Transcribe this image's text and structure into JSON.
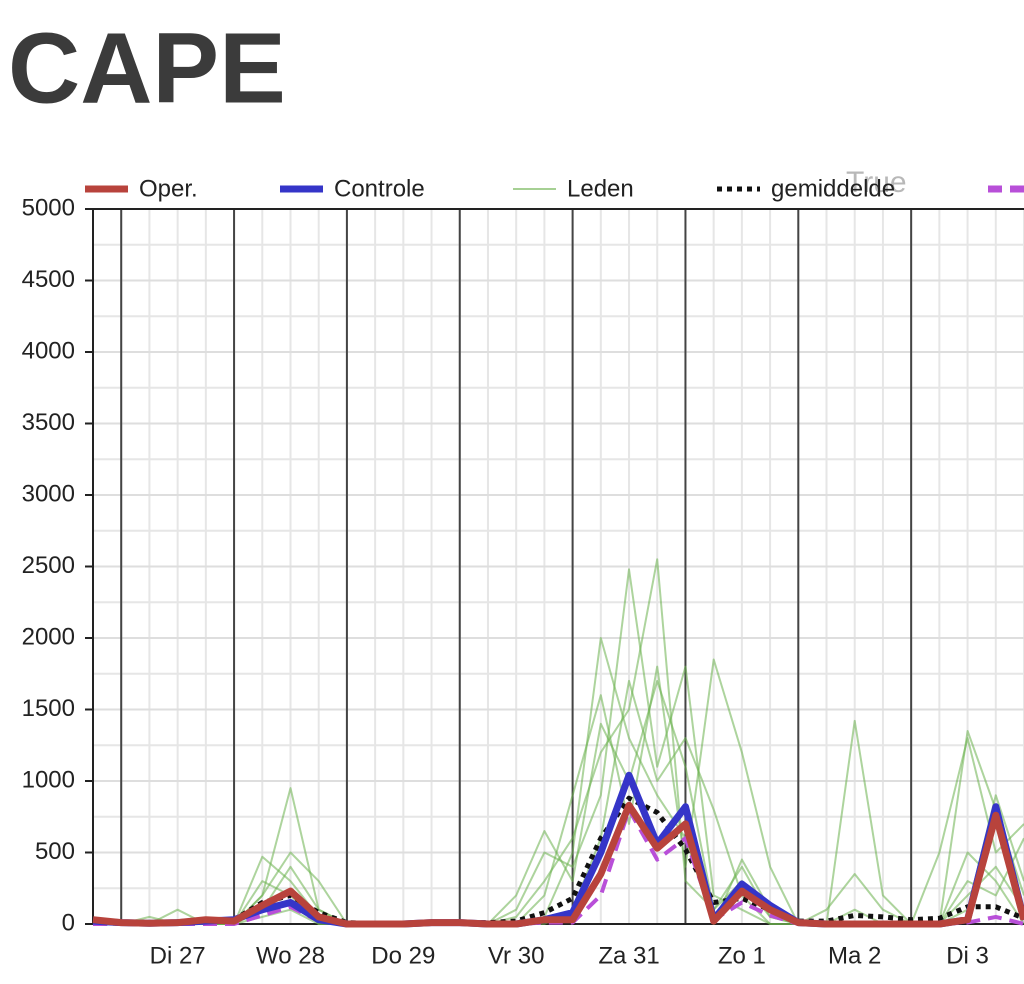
{
  "chart_data": {
    "type": "line",
    "title": "CAPE",
    "annotation": "True",
    "x": [
      -0.25,
      0,
      0.25,
      0.5,
      0.75,
      1,
      1.25,
      1.5,
      1.75,
      2,
      2.25,
      2.5,
      2.75,
      3,
      3.25,
      3.5,
      3.75,
      4,
      4.25,
      4.5,
      4.75,
      5,
      5.25,
      5.5,
      5.75,
      6,
      6.25,
      6.5,
      6.75,
      7,
      7.25,
      7.5,
      7.75,
      8
    ],
    "xlim": [
      -0.25,
      8
    ],
    "xticks": [
      {
        "value": 0.5,
        "label": "Di 27"
      },
      {
        "value": 1.5,
        "label": "Wo 28"
      },
      {
        "value": 2.5,
        "label": "Do 29"
      },
      {
        "value": 3.5,
        "label": "Vr 30"
      },
      {
        "value": 4.5,
        "label": "Za 31"
      },
      {
        "value": 5.5,
        "label": "Zo 1"
      },
      {
        "value": 6.5,
        "label": "Ma 2"
      },
      {
        "value": 7.5,
        "label": "Di 3"
      }
    ],
    "ylim": [
      0,
      5000
    ],
    "yticks": [
      0,
      500,
      1000,
      1500,
      2000,
      2500,
      3000,
      3500,
      4000,
      4500,
      5000
    ],
    "grid": true,
    "members": {
      "name": "Leden",
      "color": "#6ab04c",
      "values": [
        [
          0,
          0,
          0,
          100,
          0,
          0,
          200,
          950,
          100,
          0,
          0,
          0,
          0,
          0,
          0,
          50,
          300,
          600,
          1200,
          1500,
          2550,
          300,
          100,
          400,
          50,
          0,
          0,
          100,
          0,
          0,
          0,
          200,
          400,
          100
        ],
        [
          0,
          0,
          0,
          0,
          0,
          0,
          470,
          300,
          50,
          0,
          0,
          0,
          0,
          0,
          0,
          100,
          500,
          400,
          900,
          2480,
          1100,
          1800,
          200,
          100,
          0,
          0,
          0,
          0,
          0,
          0,
          0,
          1350,
          800,
          200
        ],
        [
          0,
          0,
          0,
          0,
          0,
          0,
          100,
          400,
          100,
          0,
          0,
          0,
          0,
          0,
          0,
          0,
          200,
          900,
          1600,
          700,
          1800,
          400,
          1850,
          1200,
          400,
          0,
          0,
          1420,
          200,
          0,
          0,
          300,
          200,
          600
        ],
        [
          0,
          0,
          0,
          0,
          0,
          0,
          300,
          200,
          0,
          0,
          0,
          0,
          0,
          0,
          0,
          200,
          650,
          300,
          1400,
          1000,
          1700,
          1100,
          100,
          300,
          50,
          0,
          100,
          350,
          100,
          0,
          0,
          500,
          300,
          0
        ],
        [
          0,
          0,
          50,
          0,
          0,
          0,
          50,
          100,
          0,
          0,
          0,
          0,
          0,
          0,
          0,
          0,
          50,
          500,
          2000,
          1300,
          900,
          600,
          0,
          450,
          100,
          0,
          0,
          0,
          0,
          0,
          500,
          1300,
          500,
          700
        ],
        [
          0,
          0,
          0,
          0,
          0,
          0,
          200,
          500,
          300,
          0,
          0,
          0,
          0,
          0,
          0,
          0,
          0,
          100,
          600,
          1700,
          1000,
          1300,
          800,
          200,
          0,
          0,
          0,
          0,
          0,
          0,
          0,
          100,
          900,
          300
        ]
      ]
    },
    "series": [
      {
        "name": "gemiddelde",
        "color": "#111111",
        "style": "dotted",
        "values": [
          10,
          5,
          10,
          15,
          20,
          30,
          150,
          200,
          80,
          10,
          5,
          5,
          10,
          10,
          10,
          20,
          80,
          180,
          600,
          880,
          780,
          520,
          150,
          180,
          100,
          20,
          20,
          60,
          50,
          30,
          40,
          120,
          120,
          40
        ]
      },
      {
        "color": "#b84fd8",
        "style": "dashed",
        "values": [
          0,
          0,
          0,
          0,
          0,
          0,
          60,
          120,
          20,
          0,
          0,
          0,
          0,
          0,
          0,
          0,
          10,
          10,
          200,
          800,
          450,
          600,
          30,
          150,
          60,
          0,
          0,
          0,
          0,
          0,
          0,
          10,
          50,
          0
        ]
      },
      {
        "name": "Controle",
        "color": "#3535c8",
        "style": "solid",
        "values": [
          20,
          10,
          5,
          10,
          20,
          30,
          100,
          150,
          30,
          0,
          0,
          0,
          10,
          10,
          0,
          0,
          30,
          80,
          500,
          1040,
          560,
          820,
          30,
          280,
          130,
          10,
          0,
          0,
          0,
          0,
          0,
          30,
          820,
          30
        ]
      },
      {
        "name": "Oper.",
        "color": "#b8433c",
        "style": "solid",
        "values": [
          30,
          10,
          5,
          10,
          30,
          20,
          130,
          230,
          50,
          0,
          0,
          0,
          10,
          10,
          0,
          0,
          30,
          30,
          350,
          830,
          530,
          700,
          20,
          230,
          100,
          10,
          0,
          0,
          0,
          0,
          0,
          30,
          760,
          30
        ]
      }
    ]
  }
}
